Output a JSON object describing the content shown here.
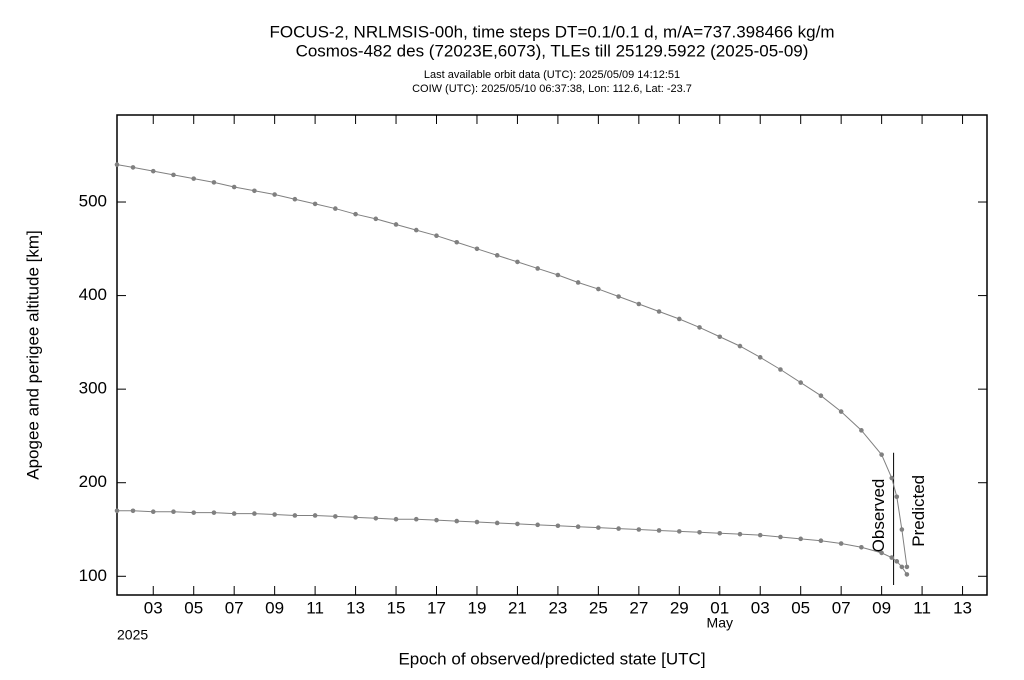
{
  "chart_data": {
    "type": "line",
    "title": "FOCUS-2, NRLMSIS-00h, time steps DT=0.1/0.1 d, m/A=737.398466 kg/m",
    "subtitle": "Cosmos-482 des (72023E,6073), TLEs till 25129.5922 (2025-05-09)",
    "notes": [
      "Last available orbit data (UTC): 2025/05/09 14:12:51",
      "COIW (UTC): 2025/05/10 06:37:38, Lon: 112.6, Lat: -23.7"
    ],
    "x_label": "Epoch of observed/predicted state [UTC]",
    "y_label": "Apogee and perigee altitude [km]",
    "year_label": "2025",
    "month_label": {
      "text": "May",
      "x": "2025-05-01"
    },
    "divider": {
      "x": "2025-05-09T14:12",
      "labels": [
        "Observed",
        "Predicted"
      ]
    },
    "color": "#808080",
    "xlim": [
      "2025-04-01T05:00",
      "2025-05-14T05:00"
    ],
    "xticks": [
      {
        "value": "2025-04-03",
        "label": "03"
      },
      {
        "value": "2025-04-05",
        "label": "05"
      },
      {
        "value": "2025-04-07",
        "label": "07"
      },
      {
        "value": "2025-04-09",
        "label": "09"
      },
      {
        "value": "2025-04-11",
        "label": "11"
      },
      {
        "value": "2025-04-13",
        "label": "13"
      },
      {
        "value": "2025-04-15",
        "label": "15"
      },
      {
        "value": "2025-04-17",
        "label": "17"
      },
      {
        "value": "2025-04-19",
        "label": "19"
      },
      {
        "value": "2025-04-21",
        "label": "21"
      },
      {
        "value": "2025-04-23",
        "label": "23"
      },
      {
        "value": "2025-04-25",
        "label": "25"
      },
      {
        "value": "2025-04-27",
        "label": "27"
      },
      {
        "value": "2025-04-29",
        "label": "29"
      },
      {
        "value": "2025-05-01",
        "label": "01"
      },
      {
        "value": "2025-05-03",
        "label": "03"
      },
      {
        "value": "2025-05-05",
        "label": "05"
      },
      {
        "value": "2025-05-07",
        "label": "07"
      },
      {
        "value": "2025-05-09",
        "label": "09"
      },
      {
        "value": "2025-05-11",
        "label": "11"
      },
      {
        "value": "2025-05-13",
        "label": "13"
      }
    ],
    "ylim": [
      80,
      593
    ],
    "yticks": [
      100,
      200,
      300,
      400,
      500
    ],
    "x": [
      "2025-04-01T05:00",
      "2025-04-02",
      "2025-04-03",
      "2025-04-04",
      "2025-04-05",
      "2025-04-06",
      "2025-04-07",
      "2025-04-08",
      "2025-04-09",
      "2025-04-10",
      "2025-04-11",
      "2025-04-12",
      "2025-04-13",
      "2025-04-14",
      "2025-04-15",
      "2025-04-16",
      "2025-04-17",
      "2025-04-18",
      "2025-04-19",
      "2025-04-20",
      "2025-04-21",
      "2025-04-22",
      "2025-04-23",
      "2025-04-24",
      "2025-04-25",
      "2025-04-26",
      "2025-04-27",
      "2025-04-28",
      "2025-04-29",
      "2025-04-30",
      "2025-05-01",
      "2025-05-02",
      "2025-05-03",
      "2025-05-04",
      "2025-05-05",
      "2025-05-06",
      "2025-05-07",
      "2025-05-08",
      "2025-05-09",
      "2025-05-09T12:00",
      "2025-05-09T18:00",
      "2025-05-10T00:00",
      "2025-05-10T06:00"
    ],
    "series": [
      {
        "color": "#808080",
        "values": [
          540,
          537,
          533,
          529,
          525,
          521,
          516,
          512,
          508,
          503,
          498,
          493,
          487,
          482,
          476,
          470,
          464,
          457,
          450,
          443,
          436,
          429,
          422,
          414,
          407,
          399,
          391,
          383,
          375,
          366,
          356,
          346,
          334,
          321,
          307,
          293,
          276,
          256,
          230,
          205,
          185,
          150,
          110
        ]
      },
      {
        "color": "#808080",
        "values": [
          170,
          170,
          169,
          169,
          168,
          168,
          167,
          167,
          166,
          165,
          165,
          164,
          163,
          162,
          161,
          161,
          160,
          159,
          158,
          157,
          156,
          155,
          154,
          153,
          152,
          151,
          150,
          149,
          148,
          147,
          146,
          145,
          144,
          142,
          140,
          138,
          135,
          131,
          125,
          120,
          116,
          110,
          102
        ]
      }
    ]
  }
}
